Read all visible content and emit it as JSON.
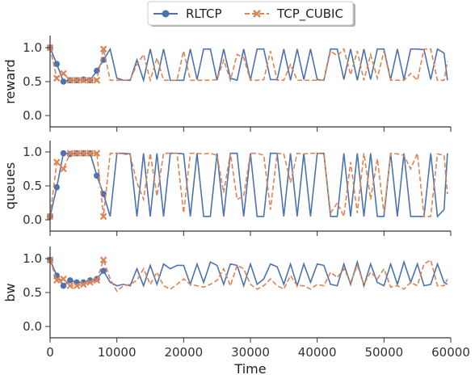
{
  "chart_data": {
    "type": "line",
    "legend": {
      "placement": "top-center",
      "entries": [
        "RLTCP",
        "TCP_CUBIC"
      ]
    },
    "xlabel": "Time",
    "xlim": [
      0,
      60000
    ],
    "x_ticks": [
      "0",
      "10000",
      "20000",
      "30000",
      "40000",
      "50000",
      "60000"
    ],
    "colors": {
      "RLTCP": "#4c72b0",
      "TCP_CUBIC": "#dd8452"
    },
    "grid": false,
    "panels": [
      {
        "ylabel": "reward",
        "ylim": [
          -0.15,
          1.15
        ],
        "y_ticks": [
          "0.0",
          "0.5",
          "1.0"
        ],
        "series": [
          {
            "name": "RLTCP",
            "x": [
              0,
              1000,
              2000,
              3000,
              4000,
              5000,
              6000,
              7000,
              8000,
              9000,
              10000,
              11000,
              12000,
              13000,
              14000,
              15000,
              16000,
              17000,
              18000,
              19000,
              20000,
              21000,
              22000,
              23000,
              24000,
              25000,
              26000,
              27000,
              28000,
              29000,
              30000,
              31000,
              32000,
              33000,
              34000,
              35000,
              36000,
              37000,
              38000,
              39000,
              40000,
              41000,
              42000,
              43000,
              44000,
              45000,
              46000,
              47000,
              48000,
              49000,
              50000,
              51000,
              52000,
              53000,
              54000,
              55000,
              56000,
              57000,
              58000,
              59000,
              59500
            ],
            "values": [
              1.0,
              0.76,
              0.5,
              0.52,
              0.52,
              0.53,
              0.52,
              0.66,
              0.82,
              0.98,
              0.55,
              0.52,
              0.52,
              0.82,
              0.52,
              0.98,
              0.53,
              0.98,
              0.52,
              0.52,
              0.52,
              0.98,
              0.53,
              0.98,
              0.98,
              0.52,
              0.98,
              0.55,
              0.52,
              0.98,
              0.52,
              0.98,
              0.98,
              0.53,
              0.53,
              0.98,
              0.52,
              0.98,
              0.53,
              0.98,
              0.53,
              0.52,
              0.98,
              0.98,
              0.53,
              0.98,
              0.52,
              0.98,
              0.53,
              0.98,
              0.98,
              0.53,
              0.98,
              0.53,
              0.98,
              0.98,
              0.97,
              0.53,
              0.98,
              0.92,
              0.52
            ]
          },
          {
            "name": "TCP_CUBIC",
            "x": [
              0,
              1000,
              2000,
              3000,
              4000,
              5000,
              6000,
              7000,
              8000,
              9000,
              10000,
              11000,
              12000,
              13000,
              14000,
              15000,
              16000,
              17000,
              18000,
              19000,
              20000,
              21000,
              22000,
              23000,
              24000,
              25000,
              26000,
              27000,
              28000,
              29000,
              30000,
              31000,
              32000,
              33000,
              34000,
              35000,
              36000,
              37000,
              38000,
              39000,
              40000,
              41000,
              42000,
              43000,
              44000,
              45000,
              46000,
              47000,
              48000,
              49000,
              50000,
              51000,
              52000,
              53000,
              54000,
              55000,
              56000,
              57000,
              58000,
              59000,
              59500
            ],
            "values": [
              1.0,
              0.55,
              0.62,
              0.52,
              0.52,
              0.52,
              0.52,
              0.52,
              0.98,
              0.52,
              0.52,
              0.52,
              0.53,
              0.75,
              0.9,
              0.52,
              0.85,
              0.52,
              0.52,
              0.52,
              0.95,
              0.52,
              0.52,
              0.52,
              0.52,
              0.53,
              0.82,
              0.52,
              0.9,
              0.85,
              0.52,
              0.52,
              0.53,
              0.95,
              0.52,
              0.52,
              0.75,
              0.52,
              0.52,
              0.52,
              0.52,
              0.52,
              0.95,
              0.88,
              0.98,
              0.6,
              0.95,
              0.52,
              0.9,
              0.55,
              0.95,
              0.52,
              0.52,
              0.52,
              0.62,
              0.52,
              0.98,
              0.98,
              0.52,
              0.52,
              0.8
            ]
          }
        ]
      },
      {
        "ylabel": "queues",
        "ylim": [
          -0.15,
          1.15
        ],
        "y_ticks": [
          "0.0",
          "0.5",
          "1.0"
        ],
        "series": [
          {
            "name": "RLTCP",
            "x": [
              0,
              1000,
              2000,
              3000,
              4000,
              5000,
              6000,
              7000,
              8000,
              9000,
              10000,
              11000,
              12000,
              13000,
              14000,
              15000,
              16000,
              17000,
              18000,
              19000,
              20000,
              21000,
              22000,
              23000,
              24000,
              25000,
              26000,
              27000,
              28000,
              29000,
              30000,
              31000,
              32000,
              33000,
              34000,
              35000,
              36000,
              37000,
              38000,
              39000,
              40000,
              41000,
              42000,
              43000,
              44000,
              45000,
              46000,
              47000,
              48000,
              49000,
              50000,
              51000,
              52000,
              53000,
              54000,
              55000,
              56000,
              57000,
              58000,
              59000,
              59500
            ],
            "values": [
              0.05,
              0.48,
              0.98,
              0.97,
              0.98,
              0.98,
              0.98,
              0.65,
              0.38,
              0.05,
              0.98,
              0.98,
              0.97,
              0.05,
              0.98,
              0.05,
              0.98,
              0.05,
              0.98,
              0.98,
              0.97,
              0.05,
              0.98,
              0.05,
              0.05,
              0.98,
              0.05,
              0.98,
              0.98,
              0.05,
              0.98,
              0.05,
              0.05,
              0.98,
              0.98,
              0.05,
              0.98,
              0.05,
              0.98,
              0.05,
              0.98,
              0.98,
              0.05,
              0.05,
              0.98,
              0.05,
              0.98,
              0.05,
              0.98,
              0.05,
              0.05,
              0.98,
              0.05,
              0.98,
              0.05,
              0.05,
              0.05,
              0.98,
              0.05,
              0.15,
              0.98
            ]
          },
          {
            "name": "TCP_CUBIC",
            "x": [
              0,
              1000,
              2000,
              3000,
              4000,
              5000,
              6000,
              7000,
              8000,
              9000,
              10000,
              11000,
              12000,
              13000,
              14000,
              15000,
              16000,
              17000,
              18000,
              19000,
              20000,
              21000,
              22000,
              23000,
              24000,
              25000,
              26000,
              27000,
              28000,
              29000,
              30000,
              31000,
              32000,
              33000,
              34000,
              35000,
              36000,
              37000,
              38000,
              39000,
              40000,
              41000,
              42000,
              43000,
              44000,
              45000,
              46000,
              47000,
              48000,
              49000,
              50000,
              51000,
              52000,
              53000,
              54000,
              55000,
              56000,
              57000,
              58000,
              59000,
              59500
            ],
            "values": [
              0.05,
              0.85,
              0.75,
              0.98,
              0.98,
              0.98,
              0.98,
              0.98,
              0.05,
              0.98,
              0.98,
              0.97,
              0.95,
              0.55,
              0.3,
              0.98,
              0.35,
              0.98,
              0.98,
              0.98,
              0.1,
              0.98,
              0.98,
              0.97,
              0.98,
              0.95,
              0.4,
              0.98,
              0.3,
              0.35,
              0.98,
              0.98,
              0.95,
              0.15,
              0.98,
              0.97,
              0.55,
              0.98,
              0.97,
              0.98,
              0.98,
              0.97,
              0.1,
              0.25,
              0.05,
              0.85,
              0.1,
              0.98,
              0.3,
              0.9,
              0.1,
              0.98,
              0.97,
              0.95,
              0.75,
              0.98,
              0.05,
              0.05,
              0.97,
              0.95,
              0.38
            ]
          }
        ]
      },
      {
        "ylabel": "bw",
        "ylim": [
          -0.15,
          1.15
        ],
        "y_ticks": [
          "0.0",
          "0.5",
          "1.0"
        ],
        "series": [
          {
            "name": "RLTCP",
            "x": [
              0,
              1000,
              2000,
              3000,
              4000,
              5000,
              6000,
              7000,
              8000,
              9000,
              10000,
              11000,
              12000,
              13000,
              14000,
              15000,
              16000,
              17000,
              18000,
              19000,
              20000,
              21000,
              22000,
              23000,
              24000,
              25000,
              26000,
              27000,
              28000,
              29000,
              30000,
              31000,
              32000,
              33000,
              34000,
              35000,
              36000,
              37000,
              38000,
              39000,
              40000,
              41000,
              42000,
              43000,
              44000,
              45000,
              46000,
              47000,
              48000,
              49000,
              50000,
              51000,
              52000,
              53000,
              54000,
              55000,
              56000,
              57000,
              58000,
              59000,
              59500
            ],
            "values": [
              0.98,
              0.75,
              0.6,
              0.68,
              0.65,
              0.65,
              0.68,
              0.7,
              0.82,
              0.65,
              0.6,
              0.62,
              0.6,
              0.85,
              0.6,
              0.9,
              0.62,
              0.92,
              0.85,
              0.9,
              0.9,
              0.62,
              0.92,
              0.65,
              0.95,
              0.9,
              0.62,
              0.92,
              0.9,
              0.6,
              0.92,
              0.62,
              0.7,
              0.92,
              0.88,
              0.62,
              0.92,
              0.6,
              0.92,
              0.65,
              0.92,
              0.9,
              0.62,
              0.6,
              0.92,
              0.62,
              0.95,
              0.6,
              0.92,
              0.65,
              0.6,
              0.92,
              0.62,
              0.95,
              0.65,
              0.92,
              0.6,
              0.62,
              0.92,
              0.65,
              0.62
            ]
          },
          {
            "name": "TCP_CUBIC",
            "x": [
              0,
              1000,
              2000,
              3000,
              4000,
              5000,
              6000,
              7000,
              8000,
              9000,
              10000,
              11000,
              12000,
              13000,
              14000,
              15000,
              16000,
              17000,
              18000,
              19000,
              20000,
              21000,
              22000,
              23000,
              24000,
              25000,
              26000,
              27000,
              28000,
              29000,
              30000,
              31000,
              32000,
              33000,
              34000,
              35000,
              36000,
              37000,
              38000,
              39000,
              40000,
              41000,
              42000,
              43000,
              44000,
              45000,
              46000,
              47000,
              48000,
              49000,
              50000,
              51000,
              52000,
              53000,
              54000,
              55000,
              56000,
              57000,
              58000,
              59000,
              59500
            ],
            "values": [
              0.98,
              0.68,
              0.7,
              0.6,
              0.6,
              0.62,
              0.65,
              0.68,
              0.98,
              0.7,
              0.52,
              0.6,
              0.62,
              0.68,
              0.85,
              0.62,
              0.8,
              0.6,
              0.55,
              0.62,
              0.7,
              0.62,
              0.6,
              0.58,
              0.62,
              0.68,
              0.85,
              0.6,
              0.9,
              0.85,
              0.62,
              0.55,
              0.6,
              0.7,
              0.6,
              0.55,
              0.75,
              0.6,
              0.6,
              0.55,
              0.62,
              0.6,
              0.8,
              0.72,
              0.85,
              0.65,
              0.9,
              0.62,
              0.8,
              0.7,
              0.85,
              0.58,
              0.6,
              0.55,
              0.65,
              0.6,
              0.92,
              0.98,
              0.6,
              0.6,
              0.7
            ]
          }
        ]
      }
    ]
  }
}
